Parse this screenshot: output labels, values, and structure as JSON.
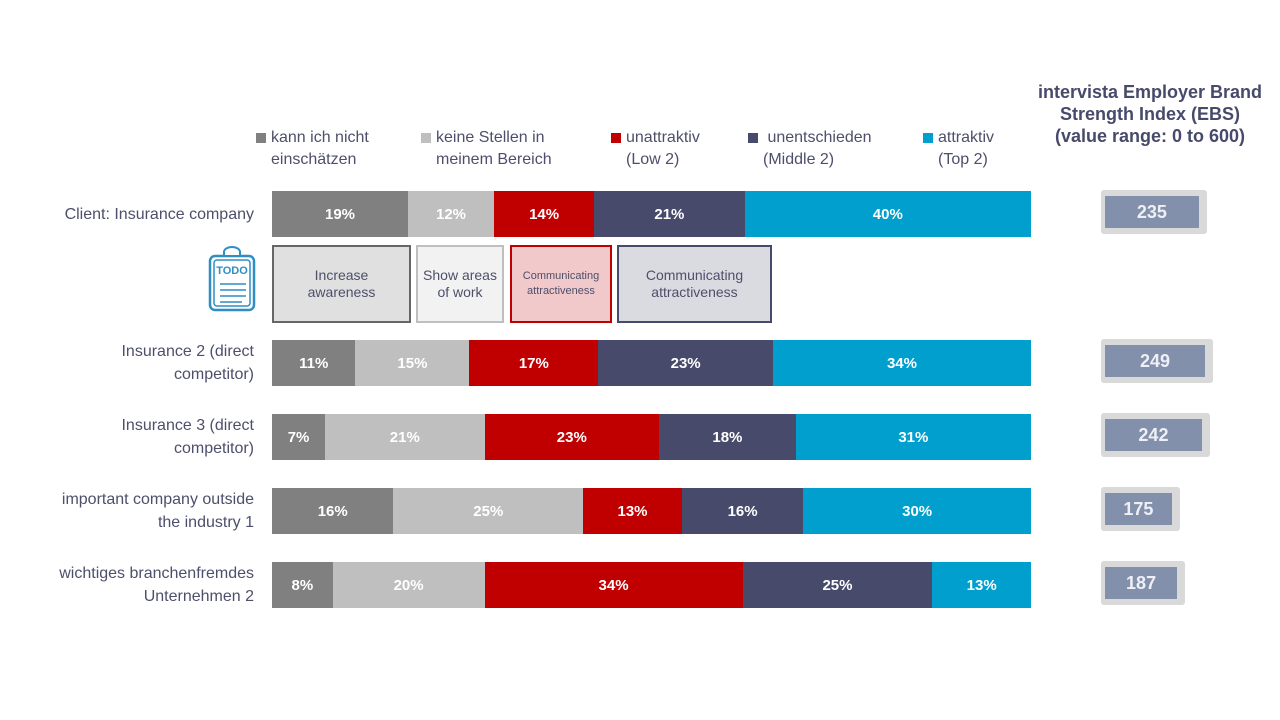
{
  "chart_data": {
    "type": "bar",
    "orientation": "horizontal",
    "stacked": true,
    "categories": [
      "Client: Insurance company",
      "Insurance 2 (direct competitor)",
      "Insurance 3 (direct competitor)",
      "important company outside the industry 1",
      "wichtiges branchenfremdes Unternehmen 2"
    ],
    "category_lines": [
      [
        "Client: Insurance company"
      ],
      [
        "Insurance 2 (direct",
        "competitor)"
      ],
      [
        "Insurance 3 (direct",
        "competitor)"
      ],
      [
        "important company outside",
        "the industry 1"
      ],
      [
        "wichtiges branchenfremdes",
        "Unternehmen 2"
      ]
    ],
    "series": [
      {
        "name": "kann ich nicht einschätzen",
        "name_lines": [
          "kann ich nicht",
          "einschätzen"
        ],
        "color": "#808080",
        "values": [
          19,
          11,
          7,
          16,
          8
        ]
      },
      {
        "name": "keine Stellen in meinem Bereich",
        "name_lines": [
          "keine Stellen in",
          "meinem Bereich"
        ],
        "color": "#bfbfbf",
        "values": [
          12,
          15,
          21,
          25,
          20
        ]
      },
      {
        "name": "unattraktiv (Low 2)",
        "name_lines": [
          "unattraktiv",
          "(Low 2)"
        ],
        "color": "#c00000",
        "values": [
          14,
          17,
          23,
          13,
          34
        ]
      },
      {
        "name": "unentschieden (Middle 2)",
        "name_lines": [
          " unentschieden",
          "(Middle 2)"
        ],
        "color": "#474a6a",
        "values": [
          21,
          23,
          18,
          16,
          25
        ]
      },
      {
        "name": "attraktiv (Top 2)",
        "name_lines": [
          "attraktiv",
          "(Top 2)"
        ],
        "color": "#009fce",
        "values": [
          40,
          34,
          31,
          30,
          13
        ]
      }
    ],
    "value_suffix": "%",
    "legend_position": "top",
    "grid": false,
    "ebs": {
      "title_lines": [
        "intervista Employer Brand",
        "Strength Index (EBS)",
        "(value range: 0 to 600)"
      ],
      "range": [
        0,
        600
      ],
      "values": [
        235,
        249,
        242,
        175,
        187
      ]
    }
  },
  "todo": {
    "icon_text": "TODO",
    "boxes": [
      {
        "lines": [
          "Increase",
          "awareness"
        ],
        "fill": "#e0e0e0",
        "border": "#666666"
      },
      {
        "lines": [
          "Show areas",
          "of work"
        ],
        "fill": "#f2f2f2",
        "border": "#bfbfbf"
      },
      {
        "lines": [
          "Communicating",
          "attractiveness"
        ],
        "fill": "#f2c9cb",
        "border": "#c00000"
      },
      {
        "lines": [
          "Communicating",
          "attractiveness"
        ],
        "fill": "#dadbe1",
        "border": "#474a6a"
      }
    ]
  }
}
